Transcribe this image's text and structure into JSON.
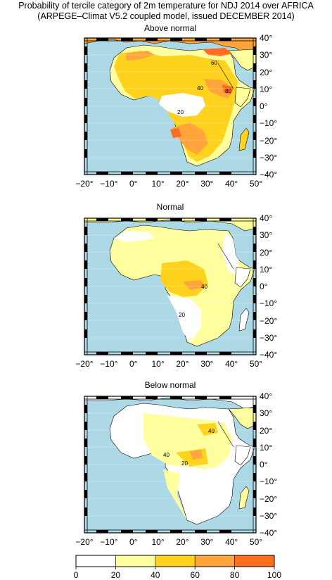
{
  "title_line1": "Probability of tercile category of 2m temperature for NDJ 2014 over AFRICA",
  "title_line2": "(ARPEGE–Climat V5.2 coupled model, issued DECEMBER 2014)",
  "panels": [
    {
      "id": "above",
      "title": "Above normal",
      "contour_labels": [
        "60",
        "40",
        "80",
        "20"
      ]
    },
    {
      "id": "normal",
      "title": "Normal",
      "contour_labels": [
        "40",
        "20"
      ]
    },
    {
      "id": "below",
      "title": "Below normal",
      "contour_labels": [
        "40",
        "40",
        "20"
      ]
    }
  ],
  "lon_ticks": [
    "−20°",
    "−10°",
    "0°",
    "10°",
    "20°",
    "30°",
    "40°",
    "50°"
  ],
  "lat_ticks": [
    "40°",
    "30°",
    "20°",
    "10°",
    "0°",
    "−10°",
    "−20°",
    "−30°",
    "−40°"
  ],
  "colorbar": {
    "ticks": [
      "0",
      "20",
      "40",
      "60",
      "80",
      "100"
    ],
    "colors": [
      "#ffffff",
      "#ffff9e",
      "#ffd21e",
      "#ffa53c",
      "#ff6e1e"
    ]
  },
  "colors": {
    "ocean": "#add8e6",
    "land_white": "#ffffff",
    "c20": "#ffff9e",
    "c40": "#ffd21e",
    "c60": "#ffa53c",
    "c80": "#ff6e1e"
  }
}
